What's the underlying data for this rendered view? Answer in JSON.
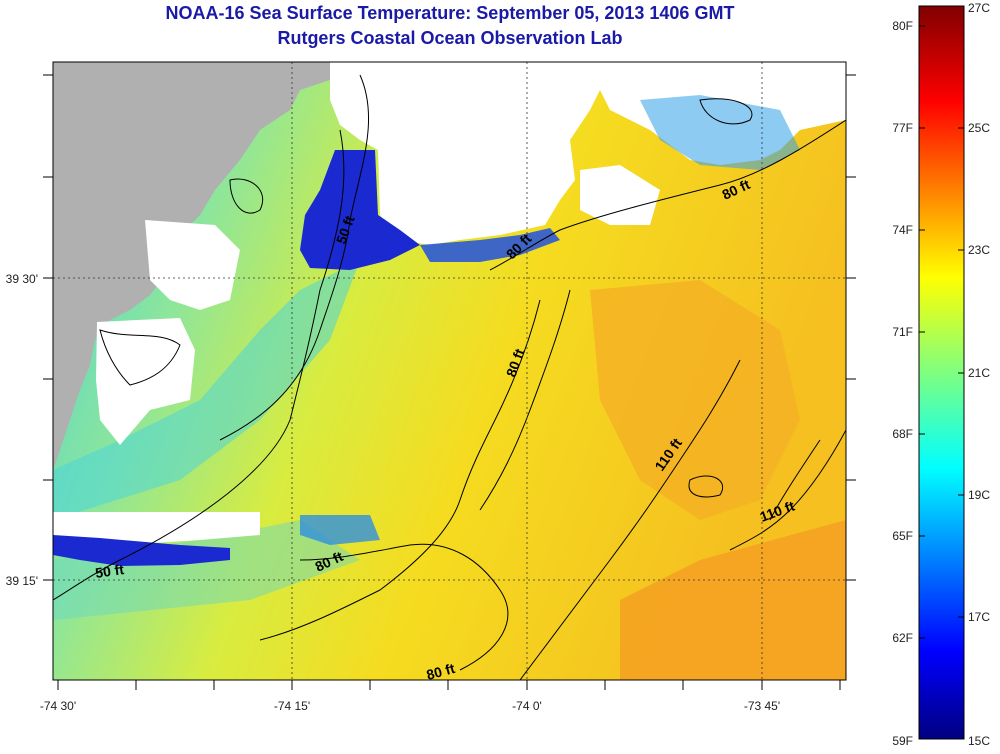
{
  "header": {
    "title": "NOAA-16 Sea Surface Temperature:  September 05, 2013 1406 GMT",
    "subtitle": "Rutgers Coastal Ocean Observation Lab"
  },
  "map": {
    "x_ticks": [
      "-74 30'",
      "-74 15'",
      "-74 0'",
      "-73 45'"
    ],
    "y_ticks": [
      "39 30'",
      "39 15'"
    ],
    "contour_labels": [
      "50 ft",
      "80 ft",
      "80 ft",
      "80 ft",
      "110 ft",
      "110 ft",
      "80 ft",
      "50 ft",
      "80 ft"
    ],
    "colors": {
      "land": "#b0b0b0",
      "cloud": "#ffffff",
      "cold": "#2030d0",
      "cool": "#20c8e8",
      "mid": "#7de0a0",
      "warm": "#f0e020",
      "hot": "#f5a020"
    }
  },
  "colorbar": {
    "fahrenheit_labels": [
      "80F",
      "77F",
      "74F",
      "71F",
      "68F",
      "65F",
      "62F",
      "59F"
    ],
    "celsius_labels": [
      "27C",
      "25C",
      "23C",
      "21C",
      "19C",
      "17C",
      "15C"
    ]
  }
}
